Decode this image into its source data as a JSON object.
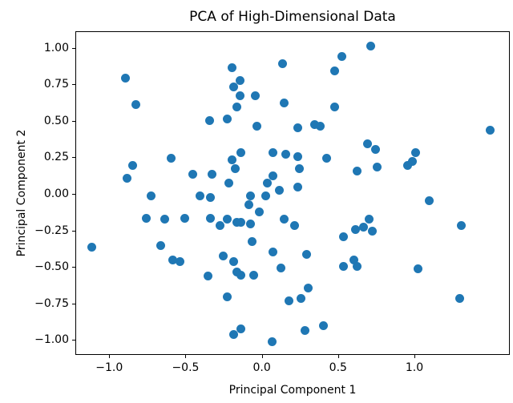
{
  "chart_data": {
    "type": "scatter",
    "title": "PCA of High-Dimensional Data",
    "xlabel": "Principal Component 1",
    "ylabel": "Principal Component 2",
    "grid": false,
    "marker_color": "#1f77b4",
    "axis_color": "#000000",
    "background_color": "#ffffff",
    "xlim": [
      -1.222,
      1.625
    ],
    "ylim": [
      -1.104,
      1.115
    ],
    "xticks": {
      "values": [
        -1.0,
        -0.5,
        0.0,
        0.5,
        1.0
      ],
      "labels": [
        "−1.0",
        "−0.5",
        "0.0",
        "0.5",
        "1.0"
      ]
    },
    "yticks": {
      "values": [
        -1.0,
        -0.75,
        -0.5,
        -0.25,
        0.0,
        0.25,
        0.5,
        0.75,
        1.0
      ],
      "labels": [
        "−1.00",
        "−0.75",
        "−0.50",
        "−0.25",
        "0.00",
        "0.25",
        "0.50",
        "0.75",
        "1.00"
      ]
    },
    "points": [
      [
        -0.9,
        0.8
      ],
      [
        -0.83,
        0.62
      ],
      [
        -0.35,
        0.51
      ],
      [
        0.52,
        0.95
      ],
      [
        0.13,
        0.9
      ],
      [
        -0.2,
        0.87
      ],
      [
        0.47,
        0.85
      ],
      [
        -0.15,
        0.78
      ],
      [
        -0.19,
        0.74
      ],
      [
        -0.15,
        0.68
      ],
      [
        -0.05,
        0.68
      ],
      [
        -0.17,
        0.6
      ],
      [
        0.14,
        0.63
      ],
      [
        0.47,
        0.6
      ],
      [
        -0.23,
        0.52
      ],
      [
        -0.04,
        0.47
      ],
      [
        0.23,
        0.46
      ],
      [
        0.34,
        0.48
      ],
      [
        0.38,
        0.47
      ],
      [
        0.71,
        1.02
      ],
      [
        1.49,
        0.44
      ],
      [
        -0.6,
        0.25
      ],
      [
        -0.85,
        0.2
      ],
      [
        -0.89,
        0.11
      ],
      [
        -0.46,
        0.14
      ],
      [
        -0.33,
        0.14
      ],
      [
        -0.73,
        -0.01
      ],
      [
        -0.41,
        -0.01
      ],
      [
        -0.34,
        -0.02
      ],
      [
        -0.76,
        -0.16
      ],
      [
        -0.64,
        -0.17
      ],
      [
        -0.51,
        -0.16
      ],
      [
        -1.12,
        -0.36
      ],
      [
        -0.67,
        -0.35
      ],
      [
        -0.34,
        -0.16
      ],
      [
        -0.28,
        -0.21
      ],
      [
        -0.23,
        -0.17
      ],
      [
        -0.17,
        -0.19
      ],
      [
        -0.14,
        -0.19
      ],
      [
        -0.14,
        0.29
      ],
      [
        -0.2,
        0.24
      ],
      [
        0.07,
        0.29
      ],
      [
        0.15,
        0.28
      ],
      [
        0.23,
        0.26
      ],
      [
        0.42,
        0.25
      ],
      [
        -0.18,
        0.18
      ],
      [
        0.24,
        0.18
      ],
      [
        0.62,
        0.16
      ],
      [
        0.07,
        0.13
      ],
      [
        0.03,
        0.08
      ],
      [
        -0.22,
        0.08
      ],
      [
        0.11,
        0.03
      ],
      [
        0.23,
        0.05
      ],
      [
        -0.08,
        -0.01
      ],
      [
        0.02,
        -0.01
      ],
      [
        -0.09,
        -0.07
      ],
      [
        -0.02,
        -0.12
      ],
      [
        -0.08,
        -0.2
      ],
      [
        0.14,
        -0.17
      ],
      [
        0.21,
        -0.21
      ],
      [
        0.53,
        -0.29
      ],
      [
        0.61,
        -0.24
      ],
      [
        -0.07,
        -0.32
      ],
      [
        0.69,
        0.35
      ],
      [
        0.74,
        0.31
      ],
      [
        0.75,
        0.19
      ],
      [
        1.0,
        0.29
      ],
      [
        0.98,
        0.23
      ],
      [
        0.95,
        0.2
      ],
      [
        1.09,
        -0.04
      ],
      [
        0.7,
        -0.17
      ],
      [
        0.66,
        -0.22
      ],
      [
        0.72,
        -0.25
      ],
      [
        1.3,
        -0.21
      ],
      [
        -0.59,
        -0.45
      ],
      [
        -0.54,
        -0.46
      ],
      [
        -0.36,
        -0.56
      ],
      [
        -0.26,
        -0.42
      ],
      [
        -0.19,
        -0.46
      ],
      [
        -0.17,
        -0.53
      ],
      [
        -0.14,
        -0.55
      ],
      [
        -0.06,
        -0.55
      ],
      [
        0.07,
        -0.39
      ],
      [
        0.12,
        -0.5
      ],
      [
        0.29,
        -0.41
      ],
      [
        0.53,
        -0.49
      ],
      [
        0.6,
        -0.45
      ],
      [
        0.62,
        -0.49
      ],
      [
        0.3,
        -0.64
      ],
      [
        0.25,
        -0.71
      ],
      [
        0.17,
        -0.73
      ],
      [
        -0.23,
        -0.7
      ],
      [
        -0.14,
        -0.92
      ],
      [
        -0.19,
        -0.96
      ],
      [
        0.28,
        -0.93
      ],
      [
        0.4,
        -0.9
      ],
      [
        0.06,
        -1.01
      ],
      [
        1.02,
        -0.51
      ],
      [
        1.29,
        -0.71
      ]
    ]
  }
}
